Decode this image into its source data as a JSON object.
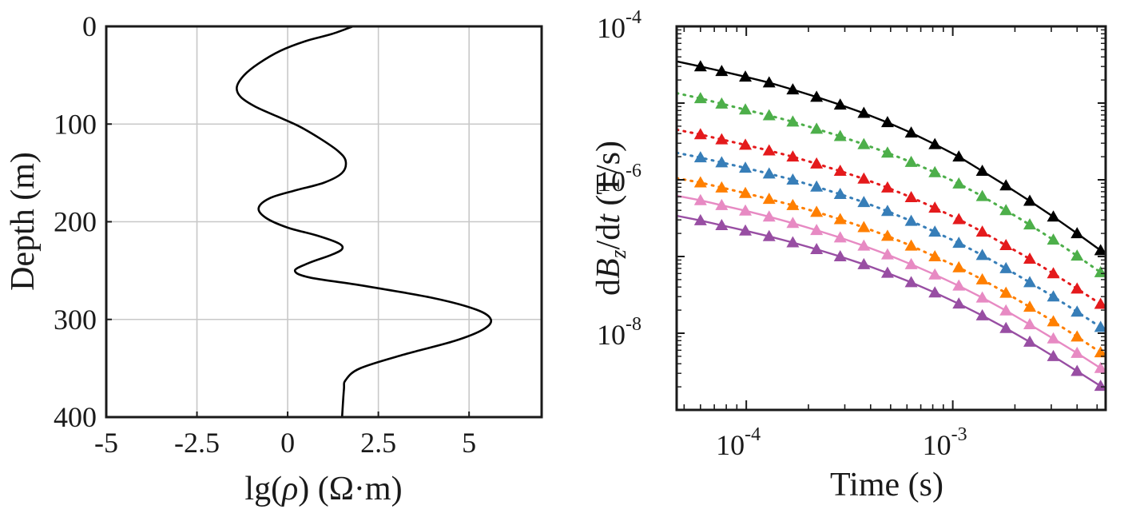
{
  "chart_data": [
    {
      "type": "line",
      "title": "",
      "xlabel_prefix": "lg(",
      "xlabel_symbol": "ρ",
      "xlabel_suffix": ") (Ω·m)",
      "ylabel": "Depth (m)",
      "xlim": [
        -5,
        7
      ],
      "ylim": [
        0,
        400
      ],
      "y_inverted": true,
      "grid": true,
      "x_ticks": [
        -5,
        -2.5,
        0,
        2.5,
        5
      ],
      "x_tick_labels": [
        "-5",
        "-2.5",
        "0",
        "2.5",
        "5"
      ],
      "y_ticks": [
        0,
        100,
        200,
        300,
        400
      ],
      "y_tick_labels": [
        "0",
        "100",
        "200",
        "300",
        "400"
      ],
      "series": [
        {
          "color": "#000000",
          "points": [
            [
              1.8,
              0
            ],
            [
              1.2,
              8
            ],
            [
              0.5,
              15
            ],
            [
              -0.2,
              25
            ],
            [
              -0.8,
              38
            ],
            [
              -1.2,
              50
            ],
            [
              -1.4,
              62
            ],
            [
              -1.3,
              72
            ],
            [
              -0.9,
              82
            ],
            [
              -0.3,
              92
            ],
            [
              0.3,
              102
            ],
            [
              0.9,
              115
            ],
            [
              1.4,
              128
            ],
            [
              1.6,
              138
            ],
            [
              1.5,
              150
            ],
            [
              1.0,
              160
            ],
            [
              0.2,
              168
            ],
            [
              -0.5,
              176
            ],
            [
              -0.8,
              186
            ],
            [
              -0.6,
              196
            ],
            [
              0.0,
              206
            ],
            [
              0.8,
              214
            ],
            [
              1.4,
              222
            ],
            [
              1.5,
              228
            ],
            [
              1.2,
              234
            ],
            [
              0.6,
              242
            ],
            [
              0.2,
              250
            ],
            [
              0.6,
              257
            ],
            [
              2.0,
              265
            ],
            [
              4.0,
              278
            ],
            [
              5.2,
              290
            ],
            [
              5.6,
              300
            ],
            [
              5.4,
              310
            ],
            [
              4.6,
              322
            ],
            [
              3.2,
              336
            ],
            [
              2.0,
              350
            ],
            [
              1.6,
              362
            ],
            [
              1.55,
              372
            ],
            [
              1.5,
              400
            ]
          ]
        }
      ]
    },
    {
      "type": "line",
      "title": "",
      "xlabel": "Time (s)",
      "ylabel_prefix": "d",
      "ylabel_B": "B",
      "ylabel_sub": "z",
      "ylabel_mid": "/d",
      "ylabel_t": "t",
      "ylabel_suffix": " (T/s)",
      "x_scale": "log",
      "y_scale": "log",
      "xlim": [
        4.6e-05,
        0.0055
      ],
      "ylim": [
        1e-09,
        0.0001
      ],
      "grid": false,
      "x_tick_labels": [
        "10^-4",
        "10^-3"
      ],
      "x_tick_base": [
        "10",
        "10"
      ],
      "x_tick_exp": [
        "-4",
        "-3"
      ],
      "y_tick_base": [
        "10",
        "10",
        "10"
      ],
      "y_tick_exp": [
        "-4",
        "-6",
        "-8"
      ],
      "marker": "triangle",
      "x": [
        4.6e-05,
        6e-05,
        7.6e-05,
        9.9e-05,
        0.000129,
        0.000168,
        0.000219,
        0.000285,
        0.000371,
        0.000483,
        0.000629,
        0.000819,
        0.00107,
        0.00139,
        0.00181,
        0.00236,
        0.00307,
        0.004,
        0.0052
      ],
      "series": [
        {
          "color": "#000000",
          "line": "solid",
          "values": [
            3.5e-05,
            3e-05,
            2.6e-05,
            2.2e-05,
            1.85e-05,
            1.5e-05,
            1.2e-05,
            9.5e-06,
            7.4e-06,
            5.6e-06,
            4.1e-06,
            2.9e-06,
            2e-06,
            1.3e-06,
            8.4e-07,
            5.3e-07,
            3.3e-07,
            2e-07,
            1.2e-07
          ]
        },
        {
          "color": "#4daf4a",
          "line": "dotted",
          "values": [
            1.35e-05,
            1.15e-05,
            9.8e-06,
            8.2e-06,
            6.9e-06,
            5.7e-06,
            4.6e-06,
            3.7e-06,
            2.9e-06,
            2.25e-06,
            1.7e-06,
            1.25e-06,
            8.9e-07,
            6.1e-07,
            4e-07,
            2.6e-07,
            1.65e-07,
            1.02e-07,
            6.2e-08
          ]
        },
        {
          "color": "#e41a1c",
          "line": "dotted",
          "values": [
            4.5e-06,
            3.9e-06,
            3.35e-06,
            2.85e-06,
            2.4e-06,
            2e-06,
            1.62e-06,
            1.3e-06,
            1.03e-06,
            7.9e-07,
            5.9e-07,
            4.3e-07,
            3.05e-07,
            2.1e-07,
            1.4e-07,
            9.3e-08,
            6e-08,
            3.8e-08,
            2.4e-08
          ]
        },
        {
          "color": "#377eb8",
          "line": "dotted",
          "values": [
            2.25e-06,
            1.95e-06,
            1.68e-06,
            1.43e-06,
            1.2e-06,
            1e-06,
            8.1e-07,
            6.5e-07,
            5.1e-07,
            3.9e-07,
            2.9e-07,
            2.1e-07,
            1.5e-07,
            1.04e-07,
            7e-08,
            4.6e-08,
            3e-08,
            1.9e-08,
            1.2e-08
          ]
        },
        {
          "color": "#ff7f00",
          "line": "dotted",
          "values": [
            1.05e-06,
            9.2e-07,
            7.9e-07,
            6.7e-07,
            5.6e-07,
            4.65e-07,
            3.8e-07,
            3.05e-07,
            2.4e-07,
            1.85e-07,
            1.38e-07,
            1e-07,
            7.2e-08,
            5e-08,
            3.35e-08,
            2.2e-08,
            1.42e-08,
            9e-09,
            5.6e-09
          ]
        },
        {
          "color": "#e78ac3",
          "line": "solid",
          "values": [
            6.2e-07,
            5.4e-07,
            4.65e-07,
            3.95e-07,
            3.3e-07,
            2.72e-07,
            2.2e-07,
            1.76e-07,
            1.38e-07,
            1.06e-07,
            7.9e-08,
            5.8e-08,
            4.15e-08,
            2.9e-08,
            1.97e-08,
            1.3e-08,
            8.5e-09,
            5.5e-09,
            3.5e-09
          ]
        },
        {
          "color": "#984ea3",
          "line": "solid",
          "values": [
            3.4e-07,
            2.95e-07,
            2.55e-07,
            2.17e-07,
            1.83e-07,
            1.52e-07,
            1.24e-07,
            1e-07,
            7.9e-08,
            6.1e-08,
            4.6e-08,
            3.38e-08,
            2.42e-08,
            1.7e-08,
            1.16e-08,
            7.7e-09,
            5e-09,
            3.2e-09,
            2.05e-09
          ]
        }
      ]
    }
  ]
}
